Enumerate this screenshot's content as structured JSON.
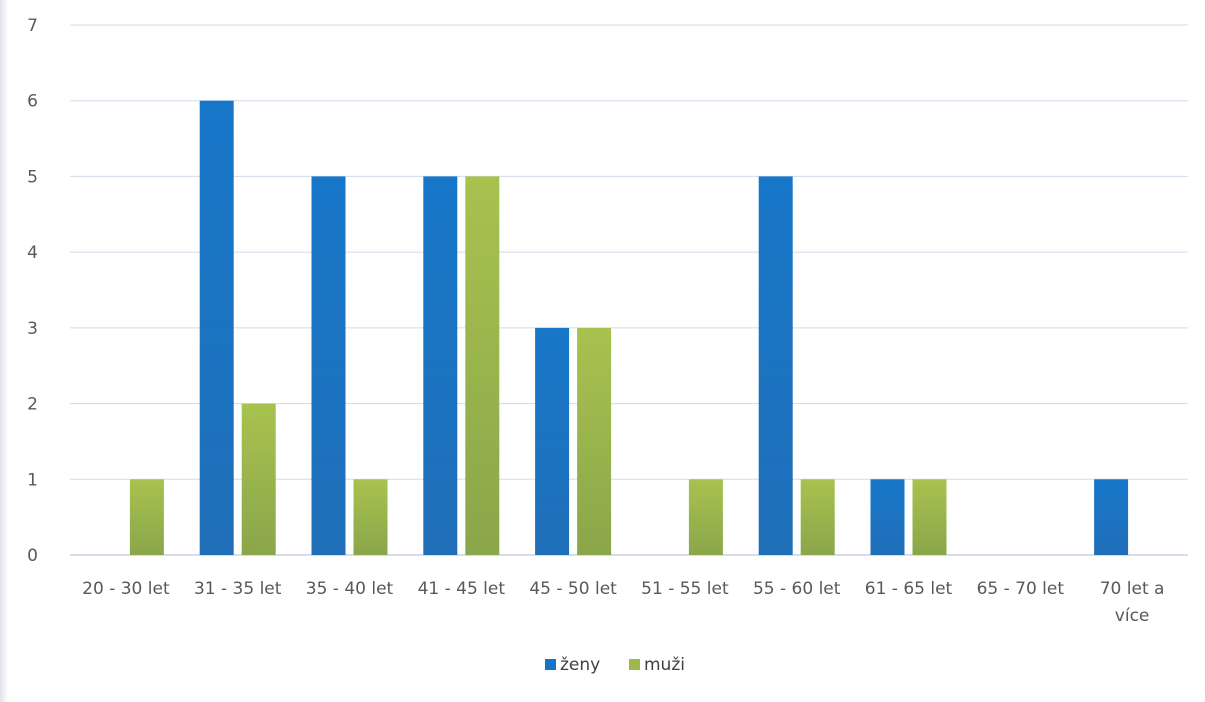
{
  "chart_data": {
    "type": "bar",
    "title": "",
    "xlabel": "",
    "ylabel": "",
    "ylim": [
      0,
      7
    ],
    "y_ticks": [
      "0",
      "1",
      "2",
      "3",
      "4",
      "5",
      "6",
      "7"
    ],
    "grid": true,
    "legend_position": "bottom",
    "categories": [
      [
        "20 - 30 let"
      ],
      [
        "31 - 35 let"
      ],
      [
        "35 - 40 let"
      ],
      [
        "41 - 45 let"
      ],
      [
        "45 - 50 let"
      ],
      [
        "51 - 55 let"
      ],
      [
        "55 - 60 let"
      ],
      [
        "61 - 65 let"
      ],
      [
        "65 - 70 let"
      ],
      [
        "70 let a",
        "více"
      ]
    ],
    "series": [
      {
        "name": "ženy",
        "color": "#1773c4",
        "values": [
          0,
          6,
          5,
          5,
          3,
          0,
          5,
          1,
          0,
          1
        ]
      },
      {
        "name": "muži",
        "color": "#9fb84a",
        "values": [
          1,
          2,
          1,
          5,
          3,
          1,
          1,
          1,
          0,
          0
        ]
      }
    ]
  }
}
